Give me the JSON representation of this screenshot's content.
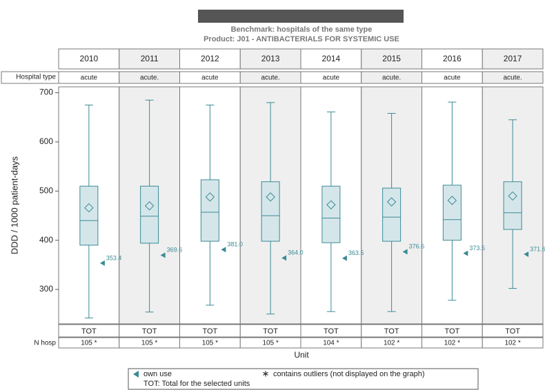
{
  "chart_data": {
    "type": "box",
    "title": "Benchmark: hospitals of the same type",
    "subtitle": "Product: J01 - ANTIBACTERIALS FOR SYSTEMIC USE",
    "categories": [
      "2010",
      "2011",
      "2012",
      "2013",
      "2014",
      "2015",
      "2016",
      "2017"
    ],
    "hospital_type_label": "Hospital type",
    "hospital_type": [
      "acute",
      "acute.",
      "acute",
      "acute.",
      "acute",
      "acute.",
      "acute",
      "acute."
    ],
    "units": [
      "TOT",
      "TOT",
      "TOT",
      "TOT",
      "TOT",
      "TOT",
      "TOT",
      "TOT"
    ],
    "n_hosp_label": "N hosp",
    "n_hosp": [
      "105 *",
      "105 *",
      "105 *",
      "105 *",
      "104 *",
      "102 *",
      "102 *",
      "102 *"
    ],
    "xlabel": "Unit",
    "ylabel": "DDD / 1000 patient-days",
    "ylim": [
      230,
      712
    ],
    "yticks": [
      300,
      400,
      500,
      600,
      700
    ],
    "color": "#3a8a94",
    "box_fill": "#d5e6ea",
    "alt_panel_color": "#efefef",
    "boxes": {
      "whisker_low": [
        242,
        254,
        268,
        250,
        255,
        255,
        278,
        302
      ],
      "q1": [
        390,
        394,
        398,
        398,
        395,
        398,
        400,
        422
      ],
      "median": [
        440,
        449,
        457,
        450,
        445,
        447,
        442,
        456
      ],
      "q3": [
        510,
        510,
        523,
        519,
        510,
        506,
        512,
        519
      ],
      "whisker_high": [
        675,
        685,
        675,
        680,
        661,
        658,
        681,
        645
      ],
      "mean": [
        466,
        470,
        488,
        488,
        472,
        478,
        481,
        490
      ]
    },
    "own_use": {
      "name": "own use",
      "values": [
        353.4,
        369.6,
        381.0,
        364.0,
        363.5,
        376.6,
        373.5,
        371.6
      ],
      "value_labels": [
        "353.4",
        "369.6",
        "381.0",
        "364.0",
        "363.5",
        "376.6",
        "373.5",
        "371.6"
      ]
    },
    "legend": {
      "outlier_symbol": "∗",
      "outliers": "contains outliers (not displayed on the graph)",
      "tot_note": "TOT: Total for the selected units"
    }
  }
}
